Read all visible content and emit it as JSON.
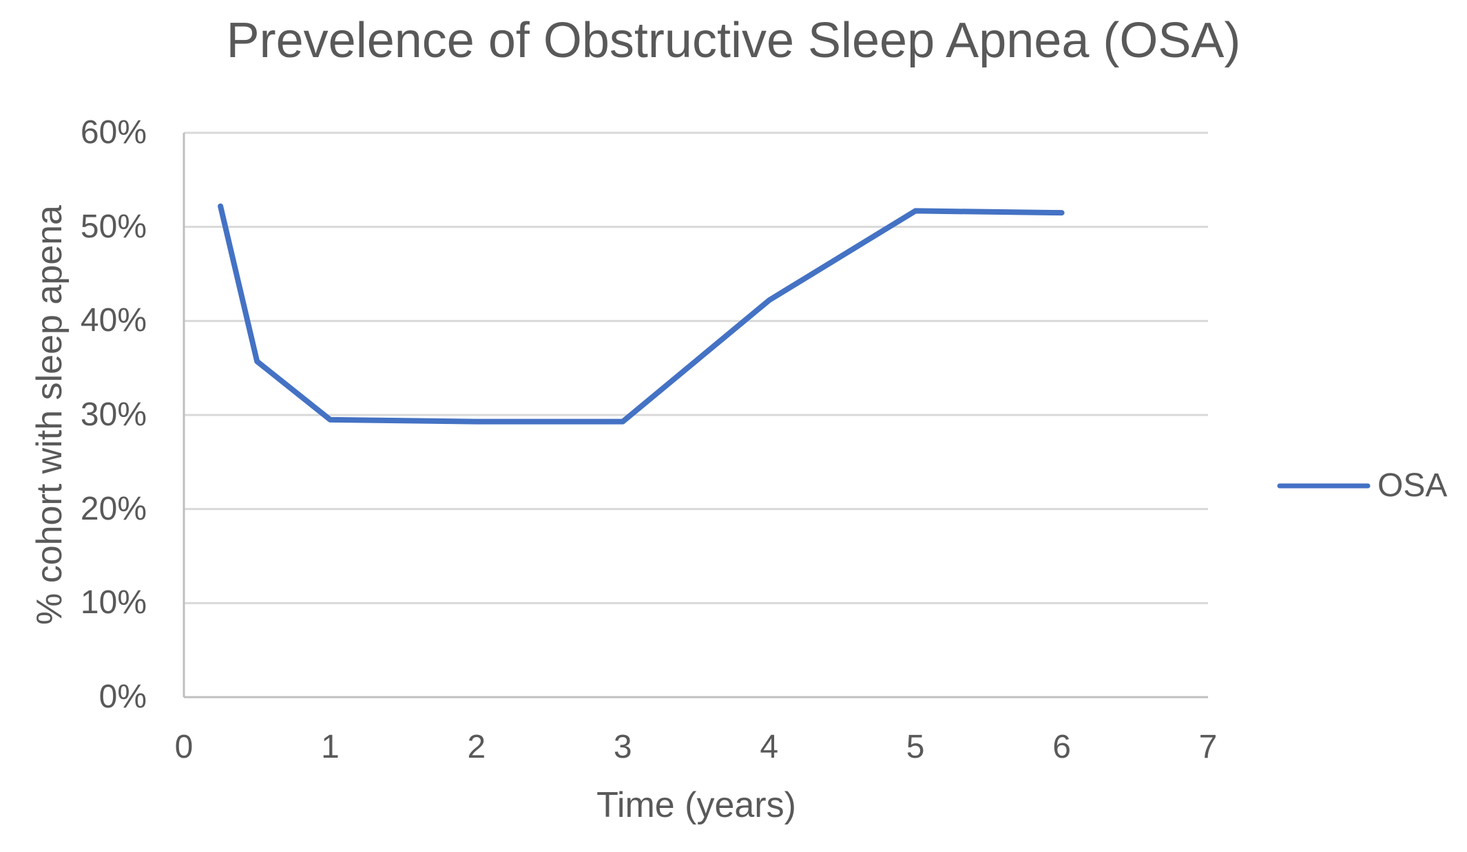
{
  "chart_data": {
    "type": "line",
    "title": "Prevelence of Obstructive Sleep Apnea (OSA)",
    "xlabel": "Time (years)",
    "ylabel": "% cohort with sleep apena",
    "xlim": [
      0,
      7
    ],
    "ylim": [
      0,
      60
    ],
    "grid": "horizontal-only",
    "legend_position": "right",
    "x_ticks": [
      {
        "value": 0,
        "label": "0"
      },
      {
        "value": 1,
        "label": "1"
      },
      {
        "value": 2,
        "label": "2"
      },
      {
        "value": 3,
        "label": "3"
      },
      {
        "value": 4,
        "label": "4"
      },
      {
        "value": 5,
        "label": "5"
      },
      {
        "value": 6,
        "label": "6"
      },
      {
        "value": 7,
        "label": "7"
      }
    ],
    "y_ticks": [
      {
        "value": 0,
        "label": "0%"
      },
      {
        "value": 10,
        "label": "10%"
      },
      {
        "value": 20,
        "label": "20%"
      },
      {
        "value": 30,
        "label": "30%"
      },
      {
        "value": 40,
        "label": "40%"
      },
      {
        "value": 50,
        "label": "50%"
      },
      {
        "value": 60,
        "label": "60%"
      }
    ],
    "series": [
      {
        "name": "OSA",
        "color": "#4472C4",
        "points": [
          [
            0.25,
            52.2
          ],
          [
            0.5,
            35.7
          ],
          [
            1,
            29.5
          ],
          [
            2,
            29.3
          ],
          [
            3,
            29.3
          ],
          [
            4,
            42.2
          ],
          [
            5,
            51.7
          ],
          [
            6,
            51.5
          ]
        ]
      }
    ]
  },
  "colors": {
    "text": "#595959",
    "gridline": "#D9D9D9",
    "axis_line": "#BFBFBF",
    "background": "#FFFFFF"
  }
}
